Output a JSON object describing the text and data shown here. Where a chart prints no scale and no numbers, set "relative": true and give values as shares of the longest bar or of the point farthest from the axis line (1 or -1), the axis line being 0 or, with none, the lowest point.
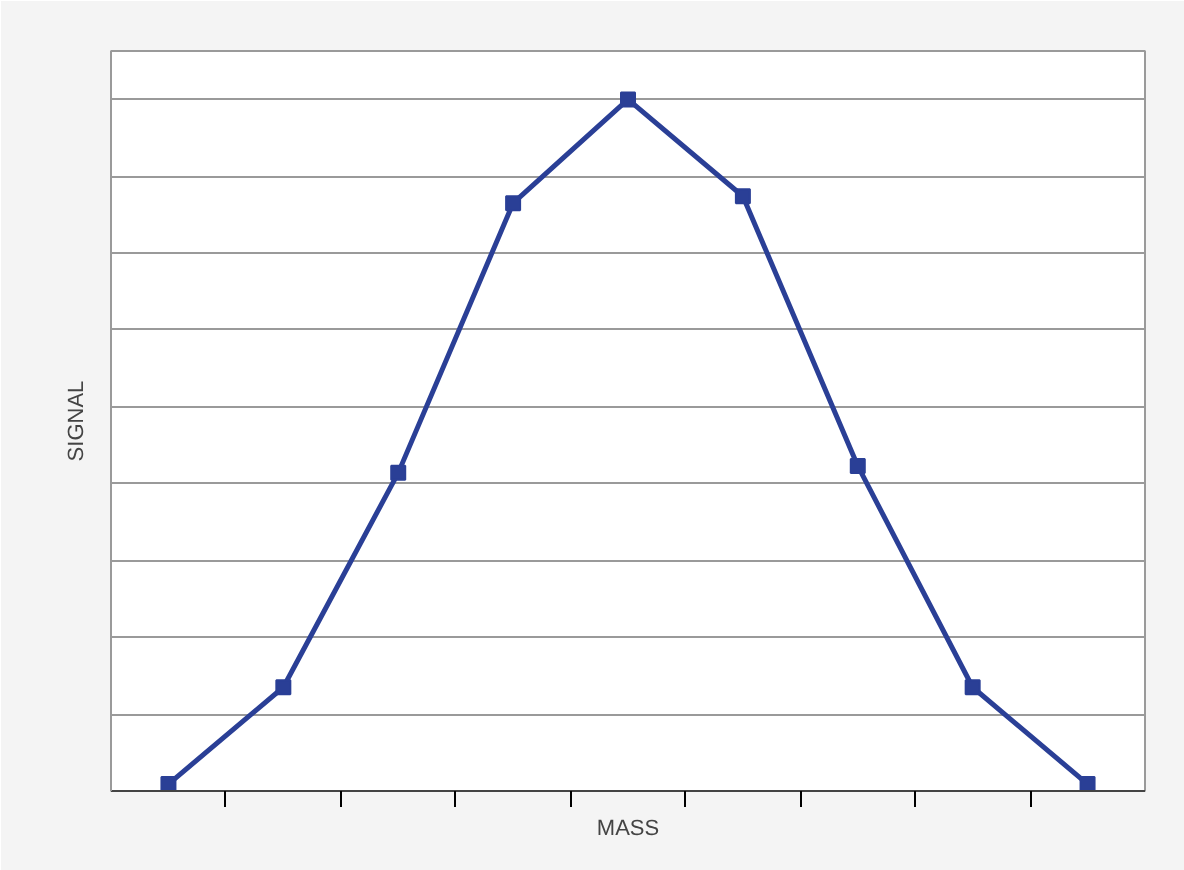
{
  "chart_data": {
    "type": "line",
    "xlabel": "MASS",
    "ylabel": "SIGNAL",
    "relative": true,
    "categories": [
      null,
      null,
      null,
      null,
      null,
      null,
      null,
      null,
      null
    ],
    "series": [
      {
        "color": "#2a3f96",
        "values": [
          0.01,
          0.15,
          0.46,
          0.85,
          1,
          0.86,
          0.47,
          0.15,
          0.01
        ]
      }
    ],
    "grid": "y",
    "marker": "square",
    "line_style": "solid"
  }
}
